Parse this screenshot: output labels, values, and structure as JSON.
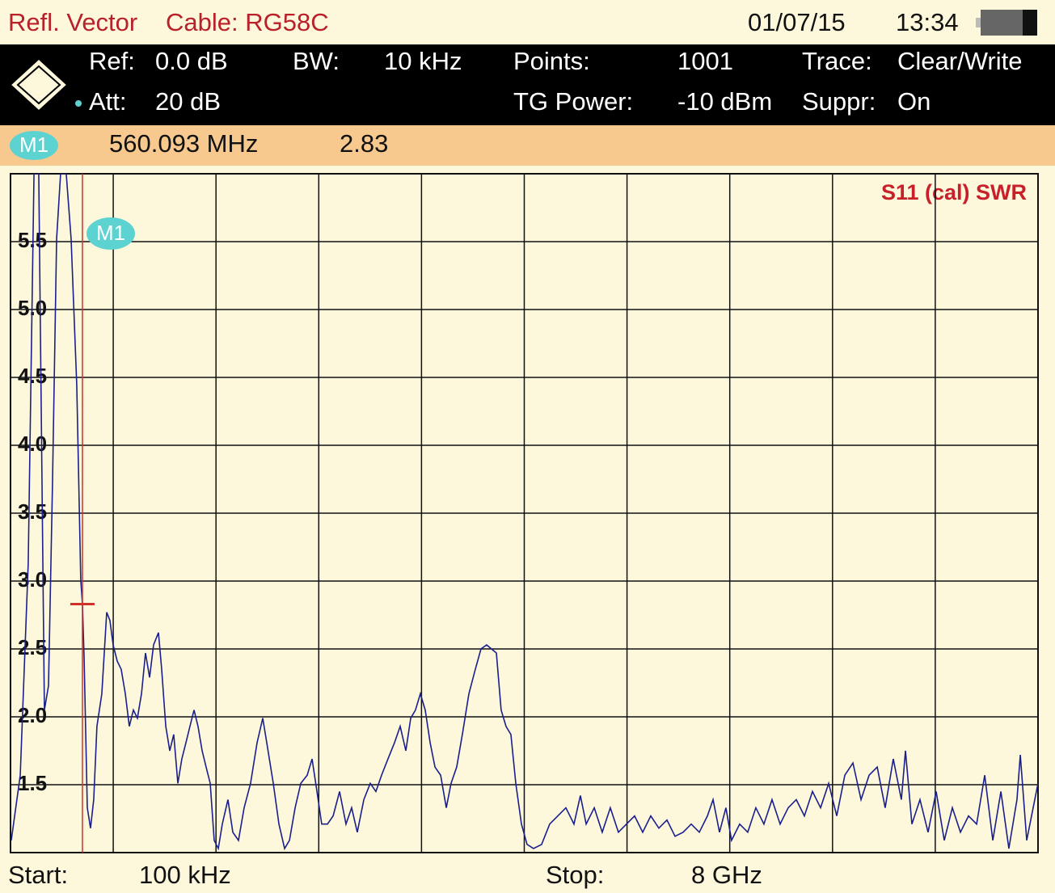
{
  "header": {
    "mode": "Refl. Vector",
    "cable": "Cable: RG58C",
    "date": "01/07/15",
    "time": "13:34"
  },
  "settings": [
    {
      "label": "Ref:",
      "value": "0.0 dB"
    },
    {
      "label": "BW:",
      "value": "10 kHz"
    },
    {
      "label": "Points:",
      "value": "1001"
    },
    {
      "label": "Trace:",
      "value": "Clear/Write"
    },
    {
      "label": "Att:",
      "value": "20 dB"
    },
    {
      "label": "TG Power:",
      "value": "-10 dBm"
    },
    {
      "label": "Suppr:",
      "value": "On"
    }
  ],
  "chart_data": {
    "type": "line",
    "trace_label": "S11 (cal) SWR",
    "start": {
      "label": "Start:",
      "value": "100 kHz"
    },
    "stop": {
      "label": "Stop:",
      "value": "8 GHz"
    },
    "marker": {
      "label": "M1",
      "x": 560.093,
      "x_label": "560.093 MHz",
      "value": 2.83
    },
    "xlim": [
      0.1,
      8000
    ],
    "xticks": [
      800,
      1600,
      2400,
      3200,
      4000,
      4800,
      5600,
      6400,
      7200
    ],
    "ylim": [
      1.0,
      6.0
    ],
    "yticks": [
      1.5,
      {
        "value": 2,
        "label": "2.0"
      },
      2.5,
      {
        "value": 3,
        "label": "3.0"
      },
      3.5,
      {
        "value": 4,
        "label": "4.0"
      },
      4.5,
      {
        "value": 5,
        "label": "5.0"
      },
      5.5
    ],
    "grid": true,
    "color": "#1a1f8c",
    "x": [
      6,
      76,
      138,
      183,
      220,
      264,
      296,
      327,
      359,
      390,
      434,
      472,
      516,
      547,
      560,
      573,
      598,
      623,
      648,
      673,
      711,
      749,
      774,
      799,
      831,
      862,
      894,
      925,
      957,
      988,
      1020,
      1051,
      1083,
      1114,
      1152,
      1177,
      1209,
      1240,
      1271,
      1303,
      1334,
      1366,
      1397,
      1429,
      1460,
      1492,
      1523,
      1555,
      1586,
      1618,
      1649,
      1693,
      1731,
      1775,
      1819,
      1869,
      1920,
      1964,
      1995,
      2046,
      2090,
      2134,
      2172,
      2216,
      2260,
      2310,
      2348,
      2386,
      2423,
      2468,
      2512,
      2562,
      2612,
      2656,
      2700,
      2751,
      2801,
      2845,
      2889,
      2939,
      2990,
      3034,
      3078,
      3116,
      3153,
      3191,
      3229,
      3267,
      3305,
      3349,
      3393,
      3430,
      3474,
      3518,
      3569,
      3619,
      3663,
      3707,
      3745,
      3783,
      3820,
      3858,
      3896,
      3934,
      3978,
      4022,
      4072,
      4135,
      4198,
      4261,
      4324,
      4387,
      4437,
      4482,
      4545,
      4607,
      4670,
      4733,
      4796,
      4859,
      4922,
      4985,
      5048,
      5111,
      5174,
      5237,
      5300,
      5363,
      5426,
      5470,
      5520,
      5570,
      5614,
      5677,
      5740,
      5803,
      5866,
      5929,
      5992,
      6055,
      6118,
      6181,
      6244,
      6307,
      6370,
      6433,
      6496,
      6559,
      6622,
      6685,
      6748,
      6810,
      6873,
      6936,
      6968,
      7018,
      7081,
      7144,
      7207,
      7270,
      7333,
      7396,
      7459,
      7522,
      7585,
      7648,
      7711,
      7773,
      7836,
      7862,
      7912,
      7962,
      8000
    ],
    "values": [
      1.09,
      1.57,
      3.13,
      6.0,
      6.0,
      2.05,
      2.23,
      3.72,
      5.52,
      6.0,
      6.0,
      5.52,
      4.44,
      3.01,
      2.83,
      2.44,
      1.33,
      1.18,
      1.39,
      1.93,
      2.17,
      2.77,
      2.71,
      2.53,
      2.41,
      2.35,
      2.17,
      1.93,
      2.05,
      1.99,
      2.17,
      2.47,
      2.29,
      2.53,
      2.62,
      2.35,
      1.93,
      1.75,
      1.87,
      1.51,
      1.69,
      1.81,
      1.93,
      2.05,
      1.93,
      1.75,
      1.63,
      1.51,
      1.09,
      1.03,
      1.21,
      1.39,
      1.15,
      1.09,
      1.33,
      1.51,
      1.81,
      1.99,
      1.81,
      1.51,
      1.21,
      1.03,
      1.09,
      1.33,
      1.51,
      1.57,
      1.69,
      1.45,
      1.21,
      1.21,
      1.27,
      1.45,
      1.21,
      1.33,
      1.15,
      1.39,
      1.51,
      1.45,
      1.57,
      1.69,
      1.81,
      1.93,
      1.75,
      1.99,
      2.05,
      2.17,
      2.05,
      1.81,
      1.63,
      1.57,
      1.33,
      1.51,
      1.63,
      1.87,
      2.17,
      2.35,
      2.5,
      2.53,
      2.5,
      2.47,
      2.05,
      1.93,
      1.87,
      1.51,
      1.21,
      1.06,
      1.03,
      1.06,
      1.21,
      1.27,
      1.33,
      1.21,
      1.42,
      1.21,
      1.33,
      1.15,
      1.33,
      1.15,
      1.21,
      1.27,
      1.15,
      1.27,
      1.18,
      1.24,
      1.12,
      1.15,
      1.21,
      1.15,
      1.27,
      1.39,
      1.15,
      1.33,
      1.09,
      1.21,
      1.15,
      1.33,
      1.21,
      1.39,
      1.21,
      1.33,
      1.39,
      1.27,
      1.45,
      1.33,
      1.51,
      1.27,
      1.57,
      1.66,
      1.39,
      1.57,
      1.63,
      1.33,
      1.69,
      1.39,
      1.75,
      1.21,
      1.39,
      1.15,
      1.45,
      1.09,
      1.33,
      1.15,
      1.27,
      1.21,
      1.57,
      1.09,
      1.45,
      1.03,
      1.39,
      1.72,
      1.09,
      1.33,
      1.51
    ]
  }
}
